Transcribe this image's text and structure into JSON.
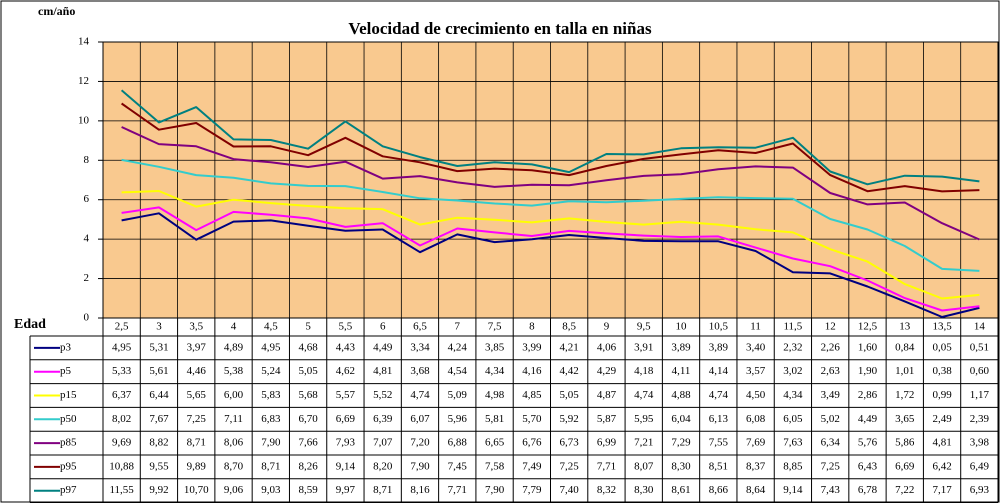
{
  "chart_data": {
    "type": "line",
    "title": "Velocidad de crecimiento en talla en niñas",
    "y_label": "cm/año",
    "x_label": "Edad",
    "categories": [
      "2,5",
      "3",
      "3,5",
      "4",
      "4,5",
      "5",
      "5,5",
      "6",
      "6,5",
      "7",
      "7,5",
      "8",
      "8,5",
      "9",
      "9,5",
      "10",
      "10,5",
      "11",
      "11,5",
      "12",
      "12,5",
      "13",
      "13,5",
      "14"
    ],
    "ylim": [
      0,
      14
    ],
    "yticks": [
      0,
      2,
      4,
      6,
      8,
      10,
      12,
      14
    ],
    "grid": true,
    "plot_background": "#f9c98f",
    "series": [
      {
        "name": "p3",
        "color": "#000080",
        "values": [
          4.95,
          5.31,
          3.97,
          4.89,
          4.95,
          4.68,
          4.43,
          4.49,
          3.34,
          4.24,
          3.85,
          3.99,
          4.21,
          4.06,
          3.91,
          3.89,
          3.89,
          3.4,
          2.32,
          2.26,
          1.6,
          0.84,
          0.05,
          0.51
        ],
        "value_labels": [
          "4,95",
          "5,31",
          "3,97",
          "4,89",
          "4,95",
          "4,68",
          "4,43",
          "4,49",
          "3,34",
          "4,24",
          "3,85",
          "3,99",
          "4,21",
          "4,06",
          "3,91",
          "3,89",
          "3,89",
          "3,40",
          "2,32",
          "2,26",
          "1,60",
          "0,84",
          "0,05",
          "0,51"
        ]
      },
      {
        "name": "p5",
        "color": "#ff00ff",
        "values": [
          5.33,
          5.61,
          4.46,
          5.38,
          5.24,
          5.05,
          4.62,
          4.81,
          3.68,
          4.54,
          4.34,
          4.16,
          4.42,
          4.29,
          4.18,
          4.11,
          4.14,
          3.57,
          3.02,
          2.63,
          1.9,
          1.01,
          0.38,
          0.6
        ],
        "value_labels": [
          "5,33",
          "5,61",
          "4,46",
          "5,38",
          "5,24",
          "5,05",
          "4,62",
          "4,81",
          "3,68",
          "4,54",
          "4,34",
          "4,16",
          "4,42",
          "4,29",
          "4,18",
          "4,11",
          "4,14",
          "3,57",
          "3,02",
          "2,63",
          "1,90",
          "1,01",
          "0,38",
          "0,60"
        ]
      },
      {
        "name": "p15",
        "color": "#ffff00",
        "values": [
          6.37,
          6.44,
          5.65,
          6.0,
          5.83,
          5.68,
          5.57,
          5.52,
          4.74,
          5.09,
          4.98,
          4.85,
          5.05,
          4.87,
          4.74,
          4.88,
          4.74,
          4.5,
          4.34,
          3.49,
          2.86,
          1.72,
          0.99,
          1.17
        ],
        "value_labels": [
          "6,37",
          "6,44",
          "5,65",
          "6,00",
          "5,83",
          "5,68",
          "5,57",
          "5,52",
          "4,74",
          "5,09",
          "4,98",
          "4,85",
          "5,05",
          "4,87",
          "4,74",
          "4,88",
          "4,74",
          "4,50",
          "4,34",
          "3,49",
          "2,86",
          "1,72",
          "0,99",
          "1,17"
        ]
      },
      {
        "name": "p50",
        "color": "#33cccc",
        "values": [
          8.02,
          7.67,
          7.25,
          7.11,
          6.83,
          6.7,
          6.69,
          6.39,
          6.07,
          5.96,
          5.81,
          5.7,
          5.92,
          5.87,
          5.95,
          6.04,
          6.13,
          6.08,
          6.05,
          5.02,
          4.49,
          3.65,
          2.49,
          2.39
        ],
        "value_labels": [
          "8,02",
          "7,67",
          "7,25",
          "7,11",
          "6,83",
          "6,70",
          "6,69",
          "6,39",
          "6,07",
          "5,96",
          "5,81",
          "5,70",
          "5,92",
          "5,87",
          "5,95",
          "6,04",
          "6,13",
          "6,08",
          "6,05",
          "5,02",
          "4,49",
          "3,65",
          "2,49",
          "2,39"
        ]
      },
      {
        "name": "p85",
        "color": "#800080",
        "values": [
          9.69,
          8.82,
          8.71,
          8.06,
          7.9,
          7.66,
          7.93,
          7.07,
          7.2,
          6.88,
          6.65,
          6.76,
          6.73,
          6.99,
          7.21,
          7.29,
          7.55,
          7.69,
          7.63,
          6.34,
          5.76,
          5.86,
          4.81,
          3.98
        ],
        "value_labels": [
          "9,69",
          "8,82",
          "8,71",
          "8,06",
          "7,90",
          "7,66",
          "7,93",
          "7,07",
          "7,20",
          "6,88",
          "6,65",
          "6,76",
          "6,73",
          "6,99",
          "7,21",
          "7,29",
          "7,55",
          "7,69",
          "7,63",
          "6,34",
          "5,76",
          "5,86",
          "4,81",
          "3,98"
        ]
      },
      {
        "name": "p95",
        "color": "#800000",
        "values": [
          10.88,
          9.55,
          9.89,
          8.7,
          8.71,
          8.26,
          9.14,
          8.2,
          7.9,
          7.45,
          7.58,
          7.49,
          7.25,
          7.71,
          8.07,
          8.3,
          8.51,
          8.37,
          8.85,
          7.25,
          6.43,
          6.69,
          6.42,
          6.49
        ],
        "value_labels": [
          "10,88",
          "9,55",
          "9,89",
          "8,70",
          "8,71",
          "8,26",
          "9,14",
          "8,20",
          "7,90",
          "7,45",
          "7,58",
          "7,49",
          "7,25",
          "7,71",
          "8,07",
          "8,30",
          "8,51",
          "8,37",
          "8,85",
          "7,25",
          "6,43",
          "6,69",
          "6,42",
          "6,49"
        ]
      },
      {
        "name": "p97",
        "color": "#008080",
        "values": [
          11.55,
          9.92,
          10.7,
          9.06,
          9.03,
          8.59,
          9.97,
          8.71,
          8.16,
          7.71,
          7.9,
          7.79,
          7.4,
          8.32,
          8.3,
          8.61,
          8.66,
          8.64,
          9.14,
          7.43,
          6.78,
          7.22,
          7.17,
          6.93
        ],
        "value_labels": [
          "11,55",
          "9,92",
          "10,70",
          "9,06",
          "9,03",
          "8,59",
          "9,97",
          "8,71",
          "8,16",
          "7,71",
          "7,90",
          "7,79",
          "7,40",
          "8,32",
          "8,30",
          "8,61",
          "8,66",
          "8,64",
          "9,14",
          "7,43",
          "6,78",
          "7,22",
          "7,17",
          "6,93"
        ]
      }
    ]
  }
}
